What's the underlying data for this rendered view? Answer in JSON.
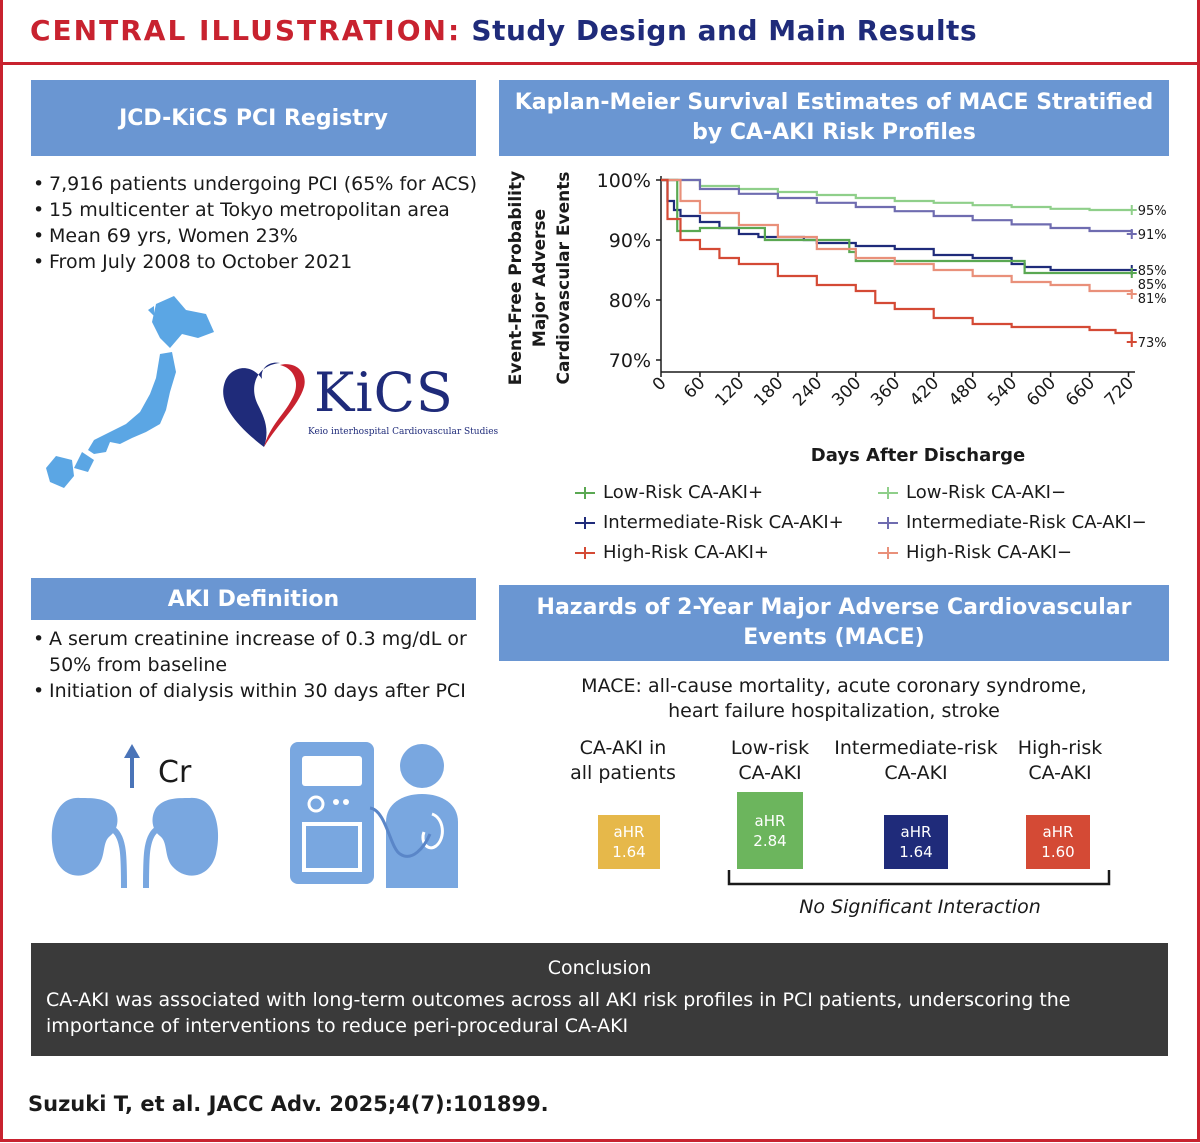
{
  "header": {
    "title_red": "CENTRAL ILLUSTRATION:",
    "title_blue": "Study Design and Main Results"
  },
  "registry": {
    "title": "JCD-KiCS PCI Registry",
    "bullets": [
      "7,916 patients undergoing PCI (65% for ACS)",
      "15 multicenter at Tokyo metropolitan area",
      "Mean 69 yrs, Women 23%",
      "From July 2008 to October 2021"
    ],
    "logo_text": "KiCS",
    "logo_subtext": "Keio interhospital Cardiovascular Studies"
  },
  "aki": {
    "title": "AKI Definition",
    "bullets": [
      "A serum creatinine increase of 0.3 mg/dL or 50% from baseline",
      "Initiation of dialysis within 30 days after PCI"
    ],
    "cr_label": "Cr"
  },
  "km": {
    "title_line1": "Kaplan-Meier Survival Estimates of MACE Stratified",
    "title_line2": "by CA-AKI Risk Profiles"
  },
  "chart_data": {
    "type": "line",
    "title": "Kaplan-Meier Survival Estimates of MACE Stratified by CA-AKI Risk Profiles",
    "xlabel": "Days After Discharge",
    "ylabel_lines": [
      "Event-Free Probability",
      "Major Adverse",
      "Cardiovascular Events"
    ],
    "xlim": [
      0,
      730
    ],
    "ylim": [
      0.68,
      1.0
    ],
    "xticks": [
      0,
      60,
      120,
      180,
      240,
      300,
      360,
      420,
      480,
      540,
      600,
      660,
      720
    ],
    "yticks": [
      0.7,
      0.8,
      0.9,
      1.0
    ],
    "ytick_labels": [
      "70%",
      "80%",
      "90%",
      "100%"
    ],
    "series": [
      {
        "name": "Low-Risk CA-AKI−",
        "color": "#8fcf8a",
        "end_label": "95%",
        "x": [
          0,
          60,
          120,
          180,
          240,
          300,
          360,
          420,
          480,
          540,
          600,
          660,
          725
        ],
        "y": [
          1.0,
          0.99,
          0.985,
          0.98,
          0.975,
          0.97,
          0.965,
          0.962,
          0.958,
          0.955,
          0.952,
          0.95,
          0.95
        ]
      },
      {
        "name": "Intermediate-Risk CA-AKI−",
        "color": "#6f6cb0",
        "end_label": "91%",
        "x": [
          0,
          60,
          120,
          180,
          240,
          300,
          360,
          420,
          480,
          540,
          600,
          660,
          725
        ],
        "y": [
          1.0,
          0.985,
          0.977,
          0.97,
          0.962,
          0.955,
          0.948,
          0.94,
          0.933,
          0.926,
          0.92,
          0.915,
          0.91
        ]
      },
      {
        "name": "Intermediate-Risk CA-AKI+",
        "color": "#1f2b7a",
        "end_label": "85%",
        "x": [
          0,
          10,
          20,
          30,
          60,
          90,
          120,
          150,
          180,
          220,
          240,
          300,
          360,
          420,
          480,
          540,
          560,
          600,
          660,
          725
        ],
        "y": [
          1.0,
          0.965,
          0.95,
          0.94,
          0.93,
          0.92,
          0.91,
          0.905,
          0.905,
          0.9,
          0.895,
          0.89,
          0.885,
          0.875,
          0.87,
          0.86,
          0.855,
          0.85,
          0.85,
          0.85
        ]
      },
      {
        "name": "Low-Risk CA-AKI+",
        "color": "#5aa852",
        "end_label": "85%",
        "x": [
          0,
          25,
          60,
          150,
          160,
          240,
          290,
          300,
          340,
          400,
          460,
          550,
          560,
          725
        ],
        "y": [
          1.0,
          0.915,
          0.92,
          0.92,
          0.9,
          0.9,
          0.88,
          0.865,
          0.865,
          0.865,
          0.865,
          0.865,
          0.845,
          0.845
        ]
      },
      {
        "name": "High-Risk CA-AKI−",
        "color": "#e9907a",
        "end_label": "81%",
        "x": [
          0,
          30,
          60,
          120,
          180,
          240,
          300,
          360,
          420,
          480,
          540,
          600,
          660,
          725
        ],
        "y": [
          1.0,
          0.965,
          0.945,
          0.925,
          0.905,
          0.885,
          0.87,
          0.86,
          0.85,
          0.84,
          0.83,
          0.825,
          0.815,
          0.81
        ]
      },
      {
        "name": "High-Risk CA-AKI+",
        "color": "#d44a35",
        "end_label": "73%",
        "x": [
          0,
          10,
          30,
          60,
          90,
          120,
          180,
          240,
          300,
          330,
          360,
          420,
          480,
          540,
          600,
          660,
          700,
          725
        ],
        "y": [
          1.0,
          0.935,
          0.9,
          0.885,
          0.87,
          0.86,
          0.84,
          0.825,
          0.815,
          0.795,
          0.785,
          0.77,
          0.76,
          0.755,
          0.755,
          0.75,
          0.745,
          0.73
        ]
      }
    ],
    "legend": [
      {
        "label": "Low-Risk CA-AKI+",
        "color": "#5aa852"
      },
      {
        "label": "Low-Risk CA-AKI−",
        "color": "#8fcf8a"
      },
      {
        "label": "Intermediate-Risk CA-AKI+",
        "color": "#1f2b7a"
      },
      {
        "label": "Intermediate-Risk CA-AKI−",
        "color": "#6f6cb0"
      },
      {
        "label": "High-Risk CA-AKI+",
        "color": "#d44a35"
      },
      {
        "label": "High-Risk CA-AKI−",
        "color": "#e9907a"
      }
    ]
  },
  "hazards": {
    "title_line1": "Hazards of 2-Year Major Adverse Cardiovascular",
    "title_line2": "Events (MACE)",
    "mace_line1": "MACE: all-cause mortality, acute coronary syndrome,",
    "mace_line2": "heart failure hospitalization, stroke",
    "groups": [
      {
        "label_line1": "CA-AKI in",
        "label_line2": "all patients",
        "box_label": "aHR",
        "value": "1.64",
        "color": "#e6b84a"
      },
      {
        "label_line1": "Low-risk",
        "label_line2": "CA-AKI",
        "box_label": "aHR",
        "value": "2.84",
        "color": "#6cb55d"
      },
      {
        "label_line1": "Intermediate-risk",
        "label_line2": "CA-AKI",
        "box_label": "aHR",
        "value": "1.64",
        "color": "#1f2b7a"
      },
      {
        "label_line1": "High-risk",
        "label_line2": "CA-AKI",
        "box_label": "aHR",
        "value": "1.60",
        "color": "#d44a35"
      }
    ],
    "interaction_text": "No Significant Interaction"
  },
  "conclusion": {
    "title": "Conclusion",
    "text": "CA-AKI was associated with long-term outcomes across all AKI risk profiles in PCI patients, underscoring the importance of interventions to reduce peri-procedural CA-AKI"
  },
  "citation": "Suzuki T, et al. JACC Adv. 2025;4(7):101899."
}
